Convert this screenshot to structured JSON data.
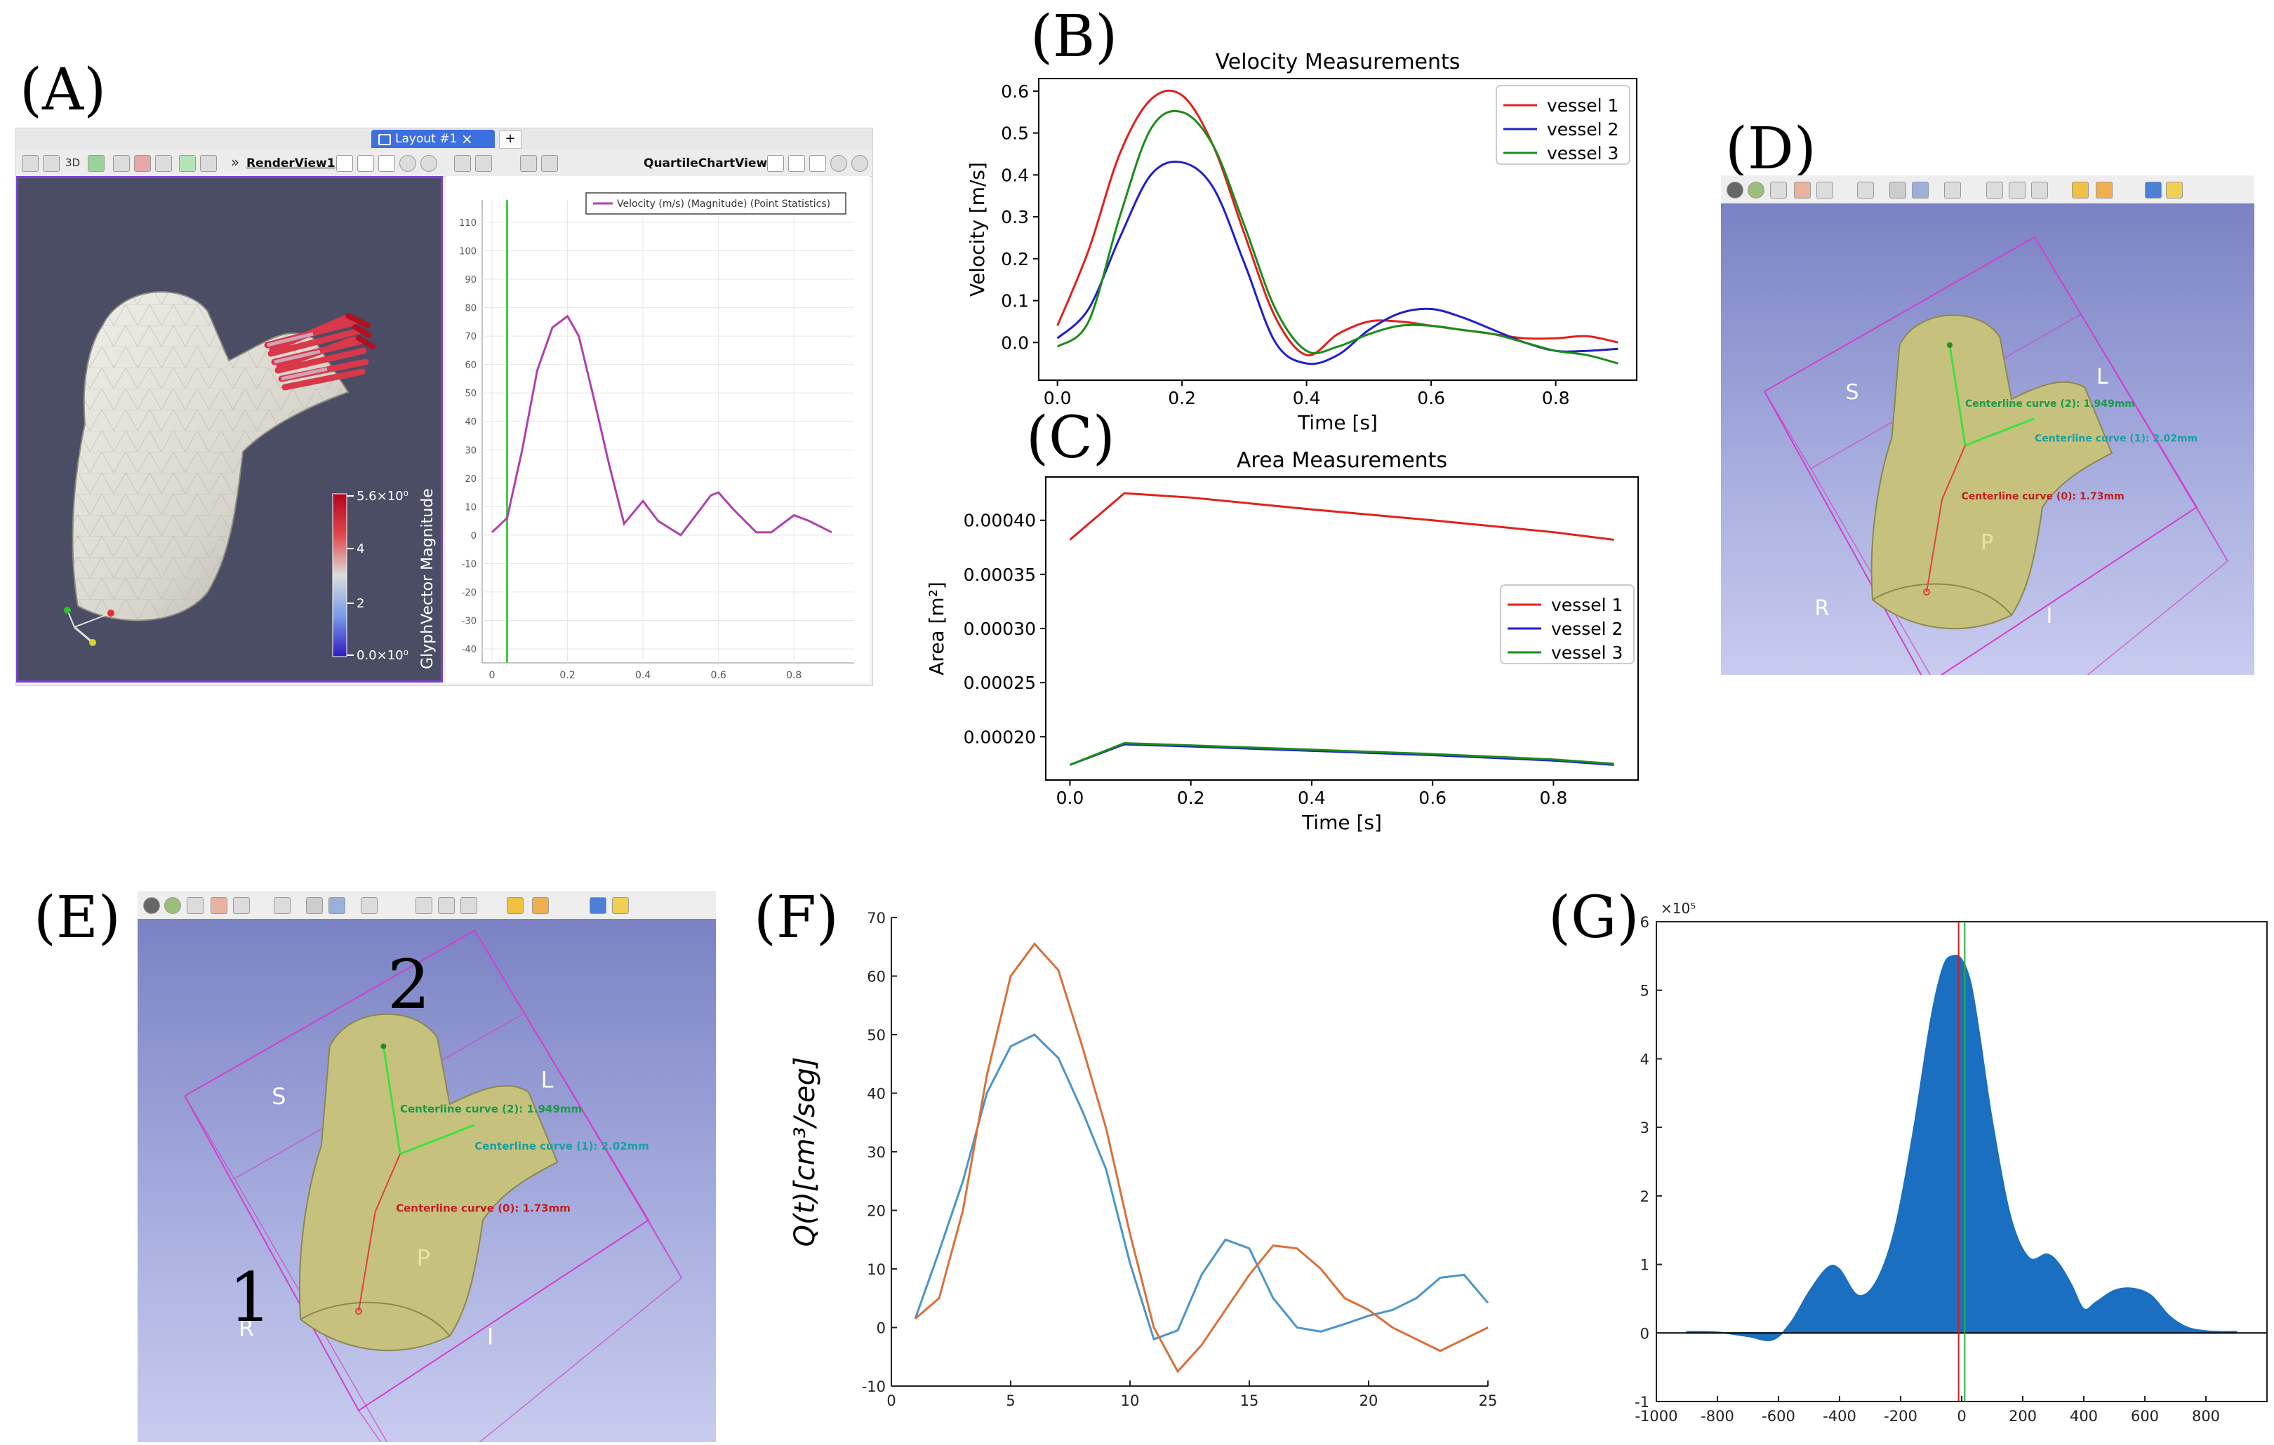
{
  "panel_labels": {
    "A": "(A)",
    "B": "(B)",
    "C": "(C)",
    "D": "(D)",
    "E": "(E)",
    "F": "(F)",
    "G": "(G)"
  },
  "panelA": {
    "tab_label": "Layout #1",
    "tab_close": "×",
    "tab_add": "+",
    "btn_3d": "3D",
    "render_view": "RenderView1",
    "chart_view": "QuartileChartView1",
    "colorbar_title": "GlyphVector Magnitude",
    "colorbar_ticks": [
      "5.6×10⁰",
      "4",
      "2",
      "0.0×10⁰"
    ]
  },
  "panelD": {
    "labels": {
      "S": "S",
      "L": "L",
      "R": "R",
      "I": "I",
      "P": "P"
    },
    "curves": [
      "Centerline curve (2): 1.949mm",
      "Centerline curve (1): 2.02mm",
      "Centerline curve (0): 1.73mm"
    ]
  },
  "panelE": {
    "labels": {
      "S": "S",
      "L": "L",
      "R": "R",
      "I": "I",
      "P": "P"
    },
    "curves": [
      "Centerline curve (2): 1.949mm",
      "Centerline curve (1): 2.02mm",
      "Centerline curve (0): 1.73mm"
    ],
    "numbers": [
      "1",
      "2"
    ]
  },
  "colors": {
    "vessel1": "#e3201b",
    "vessel2": "#1f1fcc",
    "vessel3": "#1a8c1a",
    "purple": "#b03fb0",
    "green_line": "#3fd23f",
    "blue_hist": "#1a6fc0",
    "orange": "#d9703a",
    "steel": "#4a95c9"
  },
  "chart_data": [
    {
      "id": "A",
      "type": "line",
      "legend": "Velocity (m/s) (Magnitude) (Point Statistics)",
      "x": [
        0.0,
        0.04,
        0.08,
        0.12,
        0.16,
        0.2,
        0.23,
        0.27,
        0.31,
        0.35,
        0.4,
        0.44,
        0.5,
        0.58,
        0.6,
        0.64,
        0.7,
        0.74,
        0.8,
        0.84,
        0.9
      ],
      "y": [
        1,
        6,
        30,
        58,
        73,
        77,
        70,
        48,
        25,
        4,
        12,
        5,
        0,
        14,
        15,
        9,
        1,
        1,
        7,
        5,
        1
      ],
      "xlim": [
        0,
        0.9
      ],
      "ylim": [
        -40,
        110
      ],
      "xticks": [
        "0",
        "0.2",
        "0.4",
        "0.6",
        "0.8"
      ],
      "yticks": [
        "110",
        "100",
        "90",
        "80",
        "70",
        "60",
        "50",
        "40",
        "30",
        "20",
        "10",
        "0",
        "-10",
        "-20",
        "-30",
        "-40"
      ],
      "marker_x": 0.04
    },
    {
      "id": "B",
      "type": "line",
      "title": "Velocity Measurements",
      "xlabel": "Time [s]",
      "ylabel": "Velocity [m/s]",
      "xlim": [
        -0.03,
        0.93
      ],
      "ylim": [
        -0.09,
        0.63
      ],
      "xticks": [
        "0.0",
        "0.2",
        "0.4",
        "0.6",
        "0.8"
      ],
      "yticks": [
        "0.6",
        "0.5",
        "0.4",
        "0.3",
        "0.2",
        "0.1",
        "0.0"
      ],
      "legend_position": "top-right",
      "x": [
        0,
        0.05,
        0.1,
        0.15,
        0.2,
        0.25,
        0.3,
        0.35,
        0.4,
        0.45,
        0.5,
        0.55,
        0.6,
        0.65,
        0.7,
        0.75,
        0.8,
        0.85,
        0.9
      ],
      "series": [
        {
          "name": "vessel 1",
          "values": [
            0.04,
            0.22,
            0.45,
            0.58,
            0.59,
            0.47,
            0.26,
            0.06,
            -0.03,
            0.02,
            0.05,
            0.05,
            0.04,
            0.03,
            0.02,
            0.01,
            0.01,
            0.015,
            0.0
          ]
        },
        {
          "name": "vessel 2",
          "values": [
            0.01,
            0.08,
            0.25,
            0.4,
            0.43,
            0.37,
            0.19,
            0.0,
            -0.05,
            -0.03,
            0.03,
            0.07,
            0.08,
            0.06,
            0.03,
            0.0,
            -0.02,
            -0.02,
            -0.015
          ]
        },
        {
          "name": "vessel 3",
          "values": [
            -0.01,
            0.05,
            0.3,
            0.51,
            0.55,
            0.47,
            0.28,
            0.08,
            -0.02,
            -0.01,
            0.02,
            0.04,
            0.04,
            0.03,
            0.02,
            0.0,
            -0.02,
            -0.03,
            -0.05
          ]
        }
      ]
    },
    {
      "id": "C",
      "type": "line",
      "title": "Area Measurements",
      "xlabel": "Time [s]",
      "ylabel": "Area [m²]",
      "xlim": [
        -0.04,
        0.94
      ],
      "ylim": [
        0.00016,
        0.00044
      ],
      "xticks": [
        "0.0",
        "0.2",
        "0.4",
        "0.6",
        "0.8"
      ],
      "yticks": [
        "0.00040",
        "0.00035",
        "0.00030",
        "0.00025",
        "0.00020"
      ],
      "legend_position": "center-right",
      "x": [
        0,
        0.09,
        0.2,
        0.4,
        0.6,
        0.8,
        0.9
      ],
      "series": [
        {
          "name": "vessel 1",
          "values": [
            0.000382,
            0.000425,
            0.000421,
            0.00041,
            0.0004,
            0.000389,
            0.000382
          ]
        },
        {
          "name": "vessel 2",
          "values": [
            0.000174,
            0.000193,
            0.000191,
            0.000187,
            0.000183,
            0.000178,
            0.000174
          ]
        },
        {
          "name": "vessel 3",
          "values": [
            0.000174,
            0.000194,
            0.000192,
            0.000188,
            0.000184,
            0.000179,
            0.000175
          ]
        }
      ]
    },
    {
      "id": "F",
      "type": "line",
      "ylabel": "Q(t)[cm³/seg]",
      "xlim": [
        0,
        25
      ],
      "ylim": [
        -10,
        70
      ],
      "xticks": [
        "0",
        "5",
        "10",
        "15",
        "20",
        "25"
      ],
      "yticks": [
        "70",
        "60",
        "50",
        "40",
        "30",
        "20",
        "10",
        "0",
        "-10"
      ],
      "x": [
        1,
        2,
        3,
        4,
        5,
        6,
        7,
        8,
        9,
        10,
        11,
        12,
        13,
        14,
        15,
        16,
        17,
        18,
        19,
        20,
        21,
        22,
        23,
        24,
        25
      ],
      "series": [
        {
          "values": [
            1.5,
            13,
            25,
            40,
            48,
            50,
            46,
            37,
            27,
            11,
            -2,
            -0.5,
            9,
            15,
            13.5,
            5,
            0,
            -0.7,
            0.6,
            2,
            3,
            5,
            8.5,
            9,
            4.2
          ]
        },
        {
          "values": [
            1.5,
            5,
            20,
            43,
            60,
            65.5,
            61,
            48,
            34,
            16,
            0,
            -7.5,
            -3,
            3,
            9,
            14,
            13.5,
            10,
            5,
            3,
            0,
            -2,
            -4,
            -2,
            0
          ]
        }
      ]
    },
    {
      "id": "G",
      "type": "area",
      "scale_label": "×10⁵",
      "xlim": [
        -1000,
        1000
      ],
      "ylim": [
        -1,
        6
      ],
      "xticks": [
        "-1000",
        "-800",
        "-600",
        "-400",
        "-200",
        "0",
        "200",
        "400",
        "600",
        "800"
      ],
      "yticks": [
        "6",
        "5",
        "4",
        "3",
        "2",
        "1",
        "0",
        "-1"
      ],
      "x": [
        -900,
        -800,
        -700,
        -620,
        -560,
        -500,
        -440,
        -400,
        -340,
        -280,
        -220,
        -160,
        -100,
        -60,
        -30,
        0,
        30,
        60,
        100,
        160,
        220,
        280,
        320,
        360,
        400,
        440,
        500,
        560,
        620,
        680,
        740,
        800,
        850,
        900
      ],
      "y": [
        0.02,
        0.01,
        -0.05,
        -0.1,
        0.15,
        0.6,
        0.95,
        0.93,
        0.55,
        0.75,
        1.5,
        2.9,
        4.6,
        5.35,
        5.5,
        5.45,
        5.1,
        4.3,
        3.1,
        1.7,
        1.1,
        1.15,
        1.0,
        0.7,
        0.35,
        0.45,
        0.62,
        0.65,
        0.55,
        0.25,
        0.08,
        0.03,
        0.02,
        0.02
      ],
      "vlines": [
        -10,
        10
      ]
    }
  ]
}
